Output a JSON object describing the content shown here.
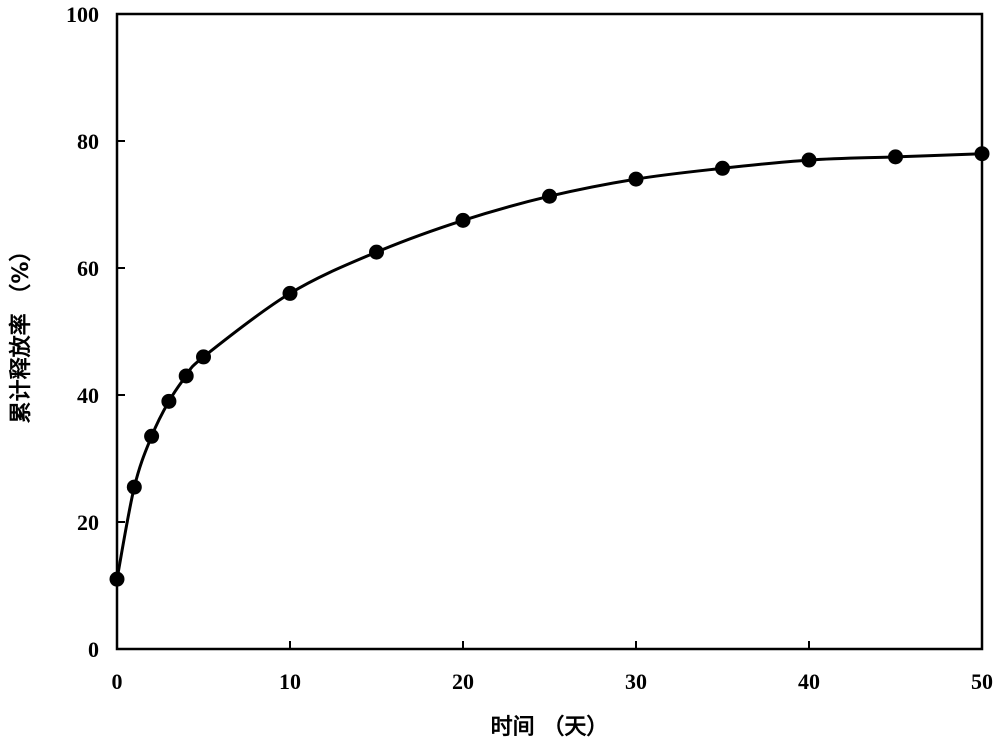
{
  "chart_data": {
    "type": "scatter",
    "title": "",
    "xlabel": "时间 （天）",
    "ylabel": "累计释放率 （%）",
    "xlim": [
      0,
      50
    ],
    "ylim": [
      0,
      100
    ],
    "xticks": [
      0,
      10,
      20,
      30,
      40,
      50
    ],
    "yticks": [
      0,
      20,
      40,
      60,
      80,
      100
    ],
    "grid": false,
    "legend": "none",
    "colors": {
      "line": "#000000",
      "marker": "#000000",
      "axis": "#000000"
    },
    "series": [
      {
        "x": [
          0,
          1,
          2,
          3,
          4,
          5,
          10,
          15,
          20,
          25,
          30,
          35,
          40,
          45,
          50
        ],
        "y": [
          11,
          25.5,
          33.5,
          39,
          43,
          46,
          56,
          62.5,
          67.5,
          71.3,
          74,
          75.7,
          77,
          77.5,
          78
        ],
        "style": "markers with smooth curve"
      }
    ]
  }
}
